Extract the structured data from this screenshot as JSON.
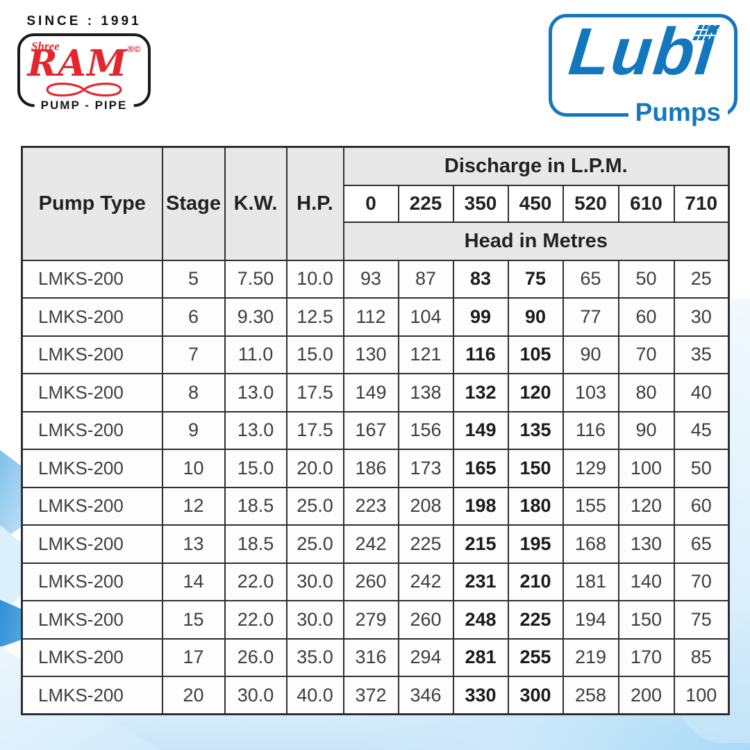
{
  "colors": {
    "lubi_blue": "#1377bd",
    "ram_red": "#e4252b",
    "header_gray": "#e8e8e8",
    "table_border": "#2f2f2f"
  },
  "ram_logo": {
    "since_text": "SINCE : 1991",
    "brand_prefix": "Shree",
    "brand_name": "RAM",
    "trademark": "®©",
    "tagline": "PUMP - PIPE"
  },
  "lubi_logo": {
    "brand_name": "Lubi",
    "tagline": "Pumps"
  },
  "table": {
    "headers": {
      "pump_type": "Pump Type",
      "stage": "Stage",
      "kw": "K.W.",
      "hp": "H.P.",
      "discharge": "Discharge in L.P.M.",
      "head": "Head in Metres"
    },
    "discharge_values": [
      "0",
      "225",
      "350",
      "450",
      "520",
      "610",
      "710"
    ],
    "bold_head_columns": [
      2,
      3
    ],
    "rows": [
      {
        "pump_type": "LMKS-200",
        "stage": "5",
        "kw": "7.50",
        "hp": "10.0",
        "heads": [
          "93",
          "87",
          "83",
          "75",
          "65",
          "50",
          "25"
        ]
      },
      {
        "pump_type": "LMKS-200",
        "stage": "6",
        "kw": "9.30",
        "hp": "12.5",
        "heads": [
          "112",
          "104",
          "99",
          "90",
          "77",
          "60",
          "30"
        ]
      },
      {
        "pump_type": "LMKS-200",
        "stage": "7",
        "kw": "11.0",
        "hp": "15.0",
        "heads": [
          "130",
          "121",
          "116",
          "105",
          "90",
          "70",
          "35"
        ]
      },
      {
        "pump_type": "LMKS-200",
        "stage": "8",
        "kw": "13.0",
        "hp": "17.5",
        "heads": [
          "149",
          "138",
          "132",
          "120",
          "103",
          "80",
          "40"
        ]
      },
      {
        "pump_type": "LMKS-200",
        "stage": "9",
        "kw": "13.0",
        "hp": "17.5",
        "heads": [
          "167",
          "156",
          "149",
          "135",
          "116",
          "90",
          "45"
        ]
      },
      {
        "pump_type": "LMKS-200",
        "stage": "10",
        "kw": "15.0",
        "hp": "20.0",
        "heads": [
          "186",
          "173",
          "165",
          "150",
          "129",
          "100",
          "50"
        ]
      },
      {
        "pump_type": "LMKS-200",
        "stage": "12",
        "kw": "18.5",
        "hp": "25.0",
        "heads": [
          "223",
          "208",
          "198",
          "180",
          "155",
          "120",
          "60"
        ]
      },
      {
        "pump_type": "LMKS-200",
        "stage": "13",
        "kw": "18.5",
        "hp": "25.0",
        "heads": [
          "242",
          "225",
          "215",
          "195",
          "168",
          "130",
          "65"
        ]
      },
      {
        "pump_type": "LMKS-200",
        "stage": "14",
        "kw": "22.0",
        "hp": "30.0",
        "heads": [
          "260",
          "242",
          "231",
          "210",
          "181",
          "140",
          "70"
        ]
      },
      {
        "pump_type": "LMKS-200",
        "stage": "15",
        "kw": "22.0",
        "hp": "30.0",
        "heads": [
          "279",
          "260",
          "248",
          "225",
          "194",
          "150",
          "75"
        ]
      },
      {
        "pump_type": "LMKS-200",
        "stage": "17",
        "kw": "26.0",
        "hp": "35.0",
        "heads": [
          "316",
          "294",
          "281",
          "255",
          "219",
          "170",
          "85"
        ]
      },
      {
        "pump_type": "LMKS-200",
        "stage": "20",
        "kw": "30.0",
        "hp": "40.0",
        "heads": [
          "372",
          "346",
          "330",
          "300",
          "258",
          "200",
          "100"
        ]
      }
    ]
  }
}
